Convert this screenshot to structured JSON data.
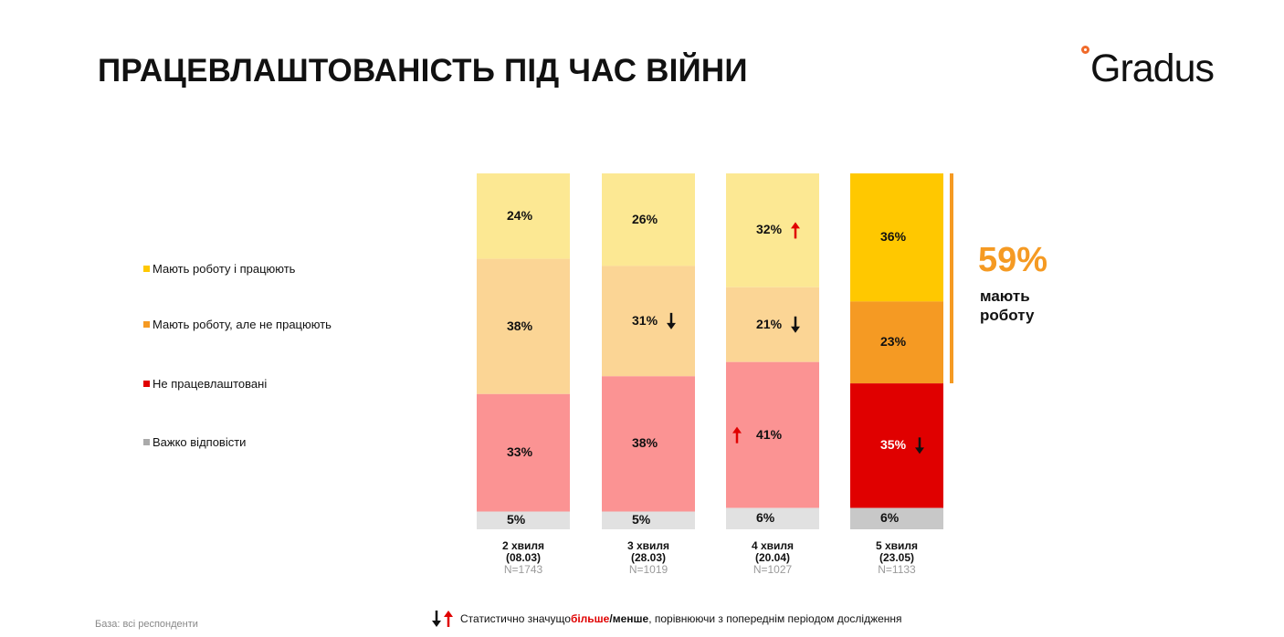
{
  "title": "ПРАЦЕВЛАШТОВАНІСТЬ ПІД ЧАС ВІЙНИ",
  "logo": {
    "text": "Gradus",
    "accent": "#f06a2a"
  },
  "legend": [
    {
      "label": "Мають роботу і працюють",
      "color": "#ffc800"
    },
    {
      "label": "Мають роботу, але не працюють",
      "color": "#f59a23"
    },
    {
      "label": "Не працевлаштовані",
      "color": "#e00000"
    },
    {
      "label": "Важко відповісти",
      "color": "#aaaaaa"
    }
  ],
  "chart_data": {
    "type": "bar",
    "stacked": true,
    "categories": [
      "2 хвиля (08.03)",
      "3 хвиля (28.03)",
      "4 хвиля (20.04)",
      "5 хвиля (23.05)"
    ],
    "waves": [
      {
        "line1": "2 хвиля",
        "line2": "(08.03)",
        "n": "N=1743"
      },
      {
        "line1": "3 хвиля",
        "line2": "(28.03)",
        "n": "N=1019"
      },
      {
        "line1": "4 хвиля",
        "line2": "(20.04)",
        "n": "N=1027"
      },
      {
        "line1": "5 хвиля",
        "line2": "(23.05)",
        "n": "N=1133"
      }
    ],
    "series": [
      {
        "name": "Мають роботу і працюють",
        "values": [
          24,
          26,
          32,
          36
        ],
        "labels": [
          "24%",
          "26%",
          "32%",
          "36%"
        ],
        "arrows": [
          null,
          null,
          "up",
          null
        ]
      },
      {
        "name": "Мають роботу, але не працюють",
        "values": [
          38,
          31,
          21,
          23
        ],
        "labels": [
          "38%",
          "31%",
          "21%",
          "23%"
        ],
        "arrows": [
          null,
          "down",
          "down",
          null
        ]
      },
      {
        "name": "Не працевлаштовані",
        "values": [
          33,
          38,
          41,
          35
        ],
        "labels": [
          "33%",
          "38%",
          "41%",
          "35%"
        ],
        "arrows": [
          null,
          null,
          "up-left",
          "down"
        ]
      },
      {
        "name": "Важко відповісти",
        "values": [
          5,
          5,
          6,
          6
        ],
        "labels": [
          "5%",
          "5%",
          "6%",
          "6%"
        ],
        "arrows": [
          null,
          null,
          null,
          null
        ]
      }
    ],
    "colors": {
      "faded": [
        "#fce893",
        "#fbd595",
        "#fb9393",
        "#e1e1e1"
      ],
      "highlight": [
        "#ffc800",
        "#f59a23",
        "#e00000",
        "#c8c8c8"
      ]
    },
    "highlight_index": 3
  },
  "summary": {
    "value": "59%",
    "text": "мають роботу",
    "color": "#f59a23"
  },
  "footnote": {
    "prefix": "Статистично значущо ",
    "more": "більше",
    "sep": " / ",
    "less": "менше",
    "suffix": ", порівнюючи з попереднім періодом дослідження"
  },
  "base_text": "База: всі респонденти"
}
